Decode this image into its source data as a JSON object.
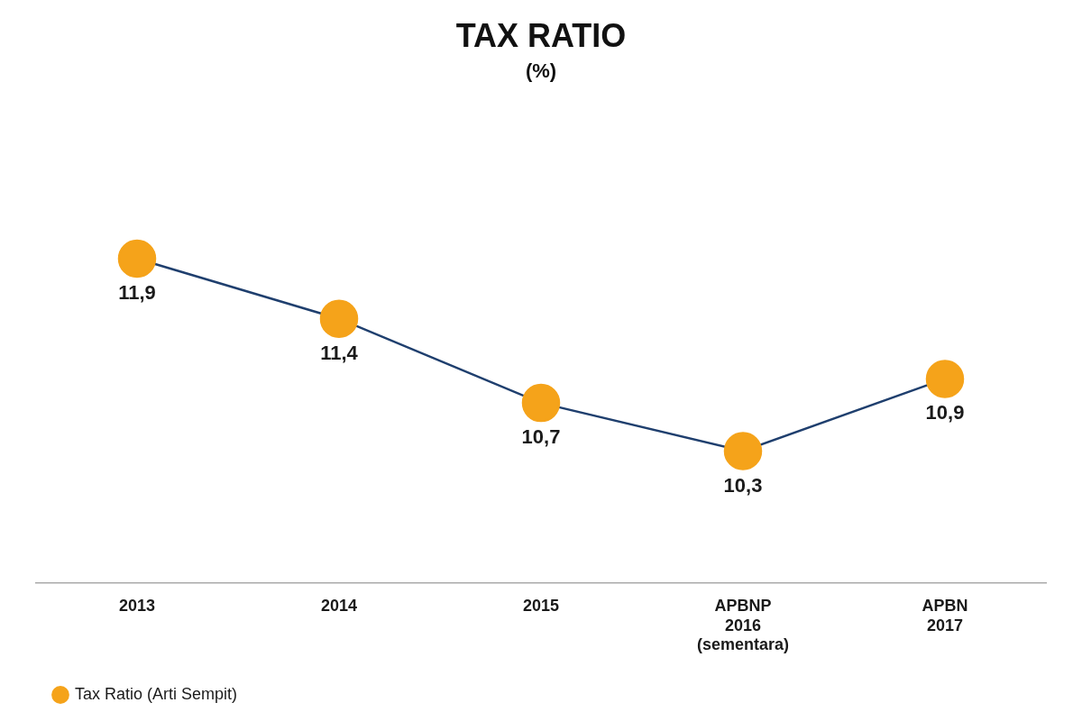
{
  "chart_data": {
    "type": "line",
    "title": "TAX RATIO",
    "subtitle": "(%)",
    "categories": [
      "2013",
      "2014",
      "2015",
      "APBNP\n2016\n(sementara)",
      "APBN\n2017"
    ],
    "series": [
      {
        "name": "Tax Ratio (Arti Sempit)",
        "color": "#1f3f6e",
        "colors": [
          "#F5A31A",
          "#F5A31A",
          "#F5A31A",
          "#F5A31A",
          "#F5A31A"
        ],
        "marker": "circle",
        "line_style": "solid",
        "values": [
          11.9,
          11.4,
          10.7,
          10.3,
          10.9
        ],
        "value_labels": [
          "11,9",
          "11,4",
          "10,7",
          "10,3",
          "10,9"
        ]
      }
    ],
    "ylim": [
      9.2,
      13.2
    ],
    "tick_labels": "x",
    "grid": false,
    "legend": "bottom",
    "data_labels": true
  }
}
